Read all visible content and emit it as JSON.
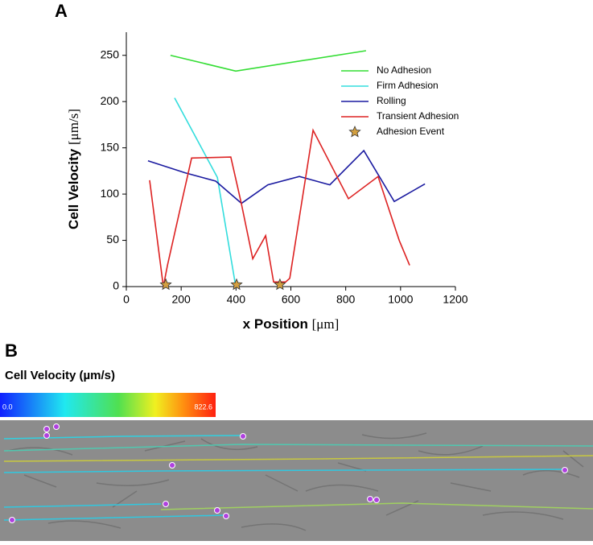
{
  "panel_a_label": "A",
  "panel_b_label": "B",
  "chart_data": {
    "type": "line",
    "xlabel": "x Position",
    "xlabel_unit": "[μm]",
    "ylabel": "Cell Velocity",
    "ylabel_unit": "[μm/s]",
    "xlim": [
      0,
      1200
    ],
    "xticks": [
      0,
      200,
      400,
      600,
      800,
      1000,
      1200
    ],
    "ylim": [
      0,
      275
    ],
    "yticks": [
      0,
      50,
      100,
      150,
      200,
      250
    ],
    "legend": "upper right",
    "series": [
      {
        "name": "No Adhesion",
        "color": "#33dd33",
        "style": "line",
        "x": [
          161,
          399,
          874
        ],
        "values": [
          250,
          233,
          255
        ]
      },
      {
        "name": "Firm Adhesion",
        "color": "#33dddd",
        "style": "line",
        "x": [
          176,
          332,
          399
        ],
        "values": [
          204,
          118,
          0
        ]
      },
      {
        "name": "Rolling",
        "color": "#1a1aa0",
        "style": "line",
        "x": [
          79,
          214,
          326,
          420,
          516,
          631,
          742,
          866,
          977,
          1089
        ],
        "values": [
          136,
          123,
          114,
          90,
          110,
          119,
          110,
          147,
          92,
          111
        ]
      },
      {
        "name": "Transient Adhesion",
        "color": "#dd2222",
        "style": "line",
        "x": [
          85,
          135,
          150,
          238,
          381,
          420,
          461,
          508,
          537,
          581,
          596,
          681,
          810,
          918,
          995,
          1033
        ],
        "values": [
          115,
          0,
          23,
          139,
          140,
          89,
          30,
          55,
          5,
          5,
          9,
          169,
          95,
          119,
          50,
          23
        ]
      },
      {
        "name": "Adhesion Event",
        "color": "#d4a040",
        "style": "star",
        "x": [
          144,
          402,
          560
        ],
        "values": [
          2,
          2,
          2
        ]
      }
    ]
  },
  "colorbar": {
    "title": "Cell Velocity (µm/s)",
    "min_label": "0.0",
    "max_label": "822.6"
  }
}
